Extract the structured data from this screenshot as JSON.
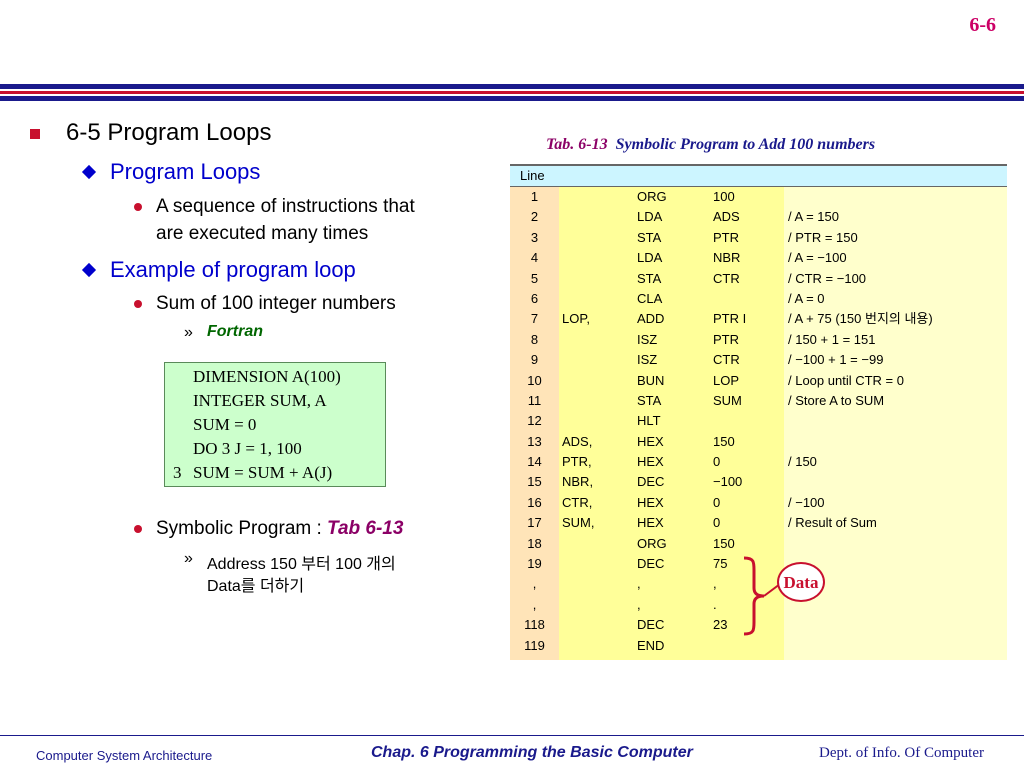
{
  "page_number": "6-6",
  "outline": {
    "section": "6-5  Program Loops",
    "sub1": {
      "title": "Program Loops",
      "item": "A sequence of instructions that are executed many times",
      "item_line1": "A sequence of instructions that",
      "item_line2": "are executed many times"
    },
    "sub2": {
      "title": "Example of program loop",
      "item1": "Sum of 100 integer numbers",
      "item1_sub": "Fortran",
      "item2_prefix": "Symbolic Program : ",
      "item2_ref": "Tab 6-13",
      "item2_sub_line1": "Address 150 부터 100 개의",
      "item2_sub_line2": "Data를 더하기"
    }
  },
  "fortran_code": [
    "DIMENSION   A(100)",
    "INTEGER  SUM, A",
    "SUM = 0",
    "DO  3  J = 1, 100",
    "SUM = SUM + A(J)"
  ],
  "fortran_statement_label": "3",
  "table": {
    "caption_number": "Tab. 6-13",
    "caption_title": "Symbolic Program to Add 100 numbers",
    "header": "Line",
    "rows": [
      {
        "line": "1",
        "label": "",
        "instr": "ORG",
        "operand": "100",
        "comment": ""
      },
      {
        "line": "2",
        "label": "",
        "instr": "LDA",
        "operand": "ADS",
        "comment": "/ A = 150"
      },
      {
        "line": "3",
        "label": "",
        "instr": "STA",
        "operand": "PTR",
        "comment": "/ PTR = 150"
      },
      {
        "line": "4",
        "label": "",
        "instr": "LDA",
        "operand": "NBR",
        "comment": "/ A = −100"
      },
      {
        "line": "5",
        "label": "",
        "instr": "STA",
        "operand": "CTR",
        "comment": "/ CTR = −100"
      },
      {
        "line": "6",
        "label": "",
        "instr": "CLA",
        "operand": "",
        "comment": "/ A = 0"
      },
      {
        "line": "7",
        "label": "LOP,",
        "instr": "ADD",
        "operand": "PTR I",
        "comment": "/ A + 75 (150 번지의 내용)"
      },
      {
        "line": "8",
        "label": "",
        "instr": "ISZ",
        "operand": "PTR",
        "comment": "/ 150 + 1 = 151"
      },
      {
        "line": "9",
        "label": "",
        "instr": "ISZ",
        "operand": "CTR",
        "comment": "/ −100 + 1 = −99"
      },
      {
        "line": "10",
        "label": "",
        "instr": "BUN",
        "operand": "LOP",
        "comment": "/ Loop until CTR = 0"
      },
      {
        "line": "11",
        "label": "",
        "instr": "STA",
        "operand": "SUM",
        "comment": "/ Store A to SUM"
      },
      {
        "line": "12",
        "label": "",
        "instr": "HLT",
        "operand": "",
        "comment": ""
      },
      {
        "line": "13",
        "label": "ADS,",
        "instr": "HEX",
        "operand": "150",
        "comment": ""
      },
      {
        "line": "14",
        "label": "PTR,",
        "instr": "HEX",
        "operand": "0",
        "comment": "/ 150"
      },
      {
        "line": "15",
        "label": "NBR,",
        "instr": "DEC",
        "operand": "−100",
        "comment": ""
      },
      {
        "line": "16",
        "label": "CTR,",
        "instr": "HEX",
        "operand": "0",
        "comment": "/ −100"
      },
      {
        "line": "17",
        "label": "SUM,",
        "instr": "HEX",
        "operand": "0",
        "comment": "/ Result of Sum"
      },
      {
        "line": "18",
        "label": "",
        "instr": "ORG",
        "operand": "150",
        "comment": ""
      },
      {
        "line": "19",
        "label": "",
        "instr": "DEC",
        "operand": "75",
        "comment": ""
      },
      {
        "line": ",",
        "label": "",
        "instr": ",",
        "operand": ",",
        "comment": ""
      },
      {
        "line": ",",
        "label": "",
        "instr": ",",
        "operand": ".",
        "comment": ""
      },
      {
        "line": "118",
        "label": "",
        "instr": "DEC",
        "operand": "23",
        "comment": ""
      },
      {
        "line": "119",
        "label": "",
        "instr": "END",
        "operand": "",
        "comment": ""
      }
    ]
  },
  "data_badge": "Data",
  "footer": {
    "left": "Computer System Architecture",
    "center": "Chap. 6  Programming the Basic Computer",
    "right": "Dept. of Info. Of Computer"
  },
  "colors": {
    "accent_red": "#c8102e",
    "navy": "#1a1a8c",
    "link_blue": "#0000cc",
    "fortran_bg": "#ccffcc",
    "table_header_bg": "#ccf5ff"
  }
}
